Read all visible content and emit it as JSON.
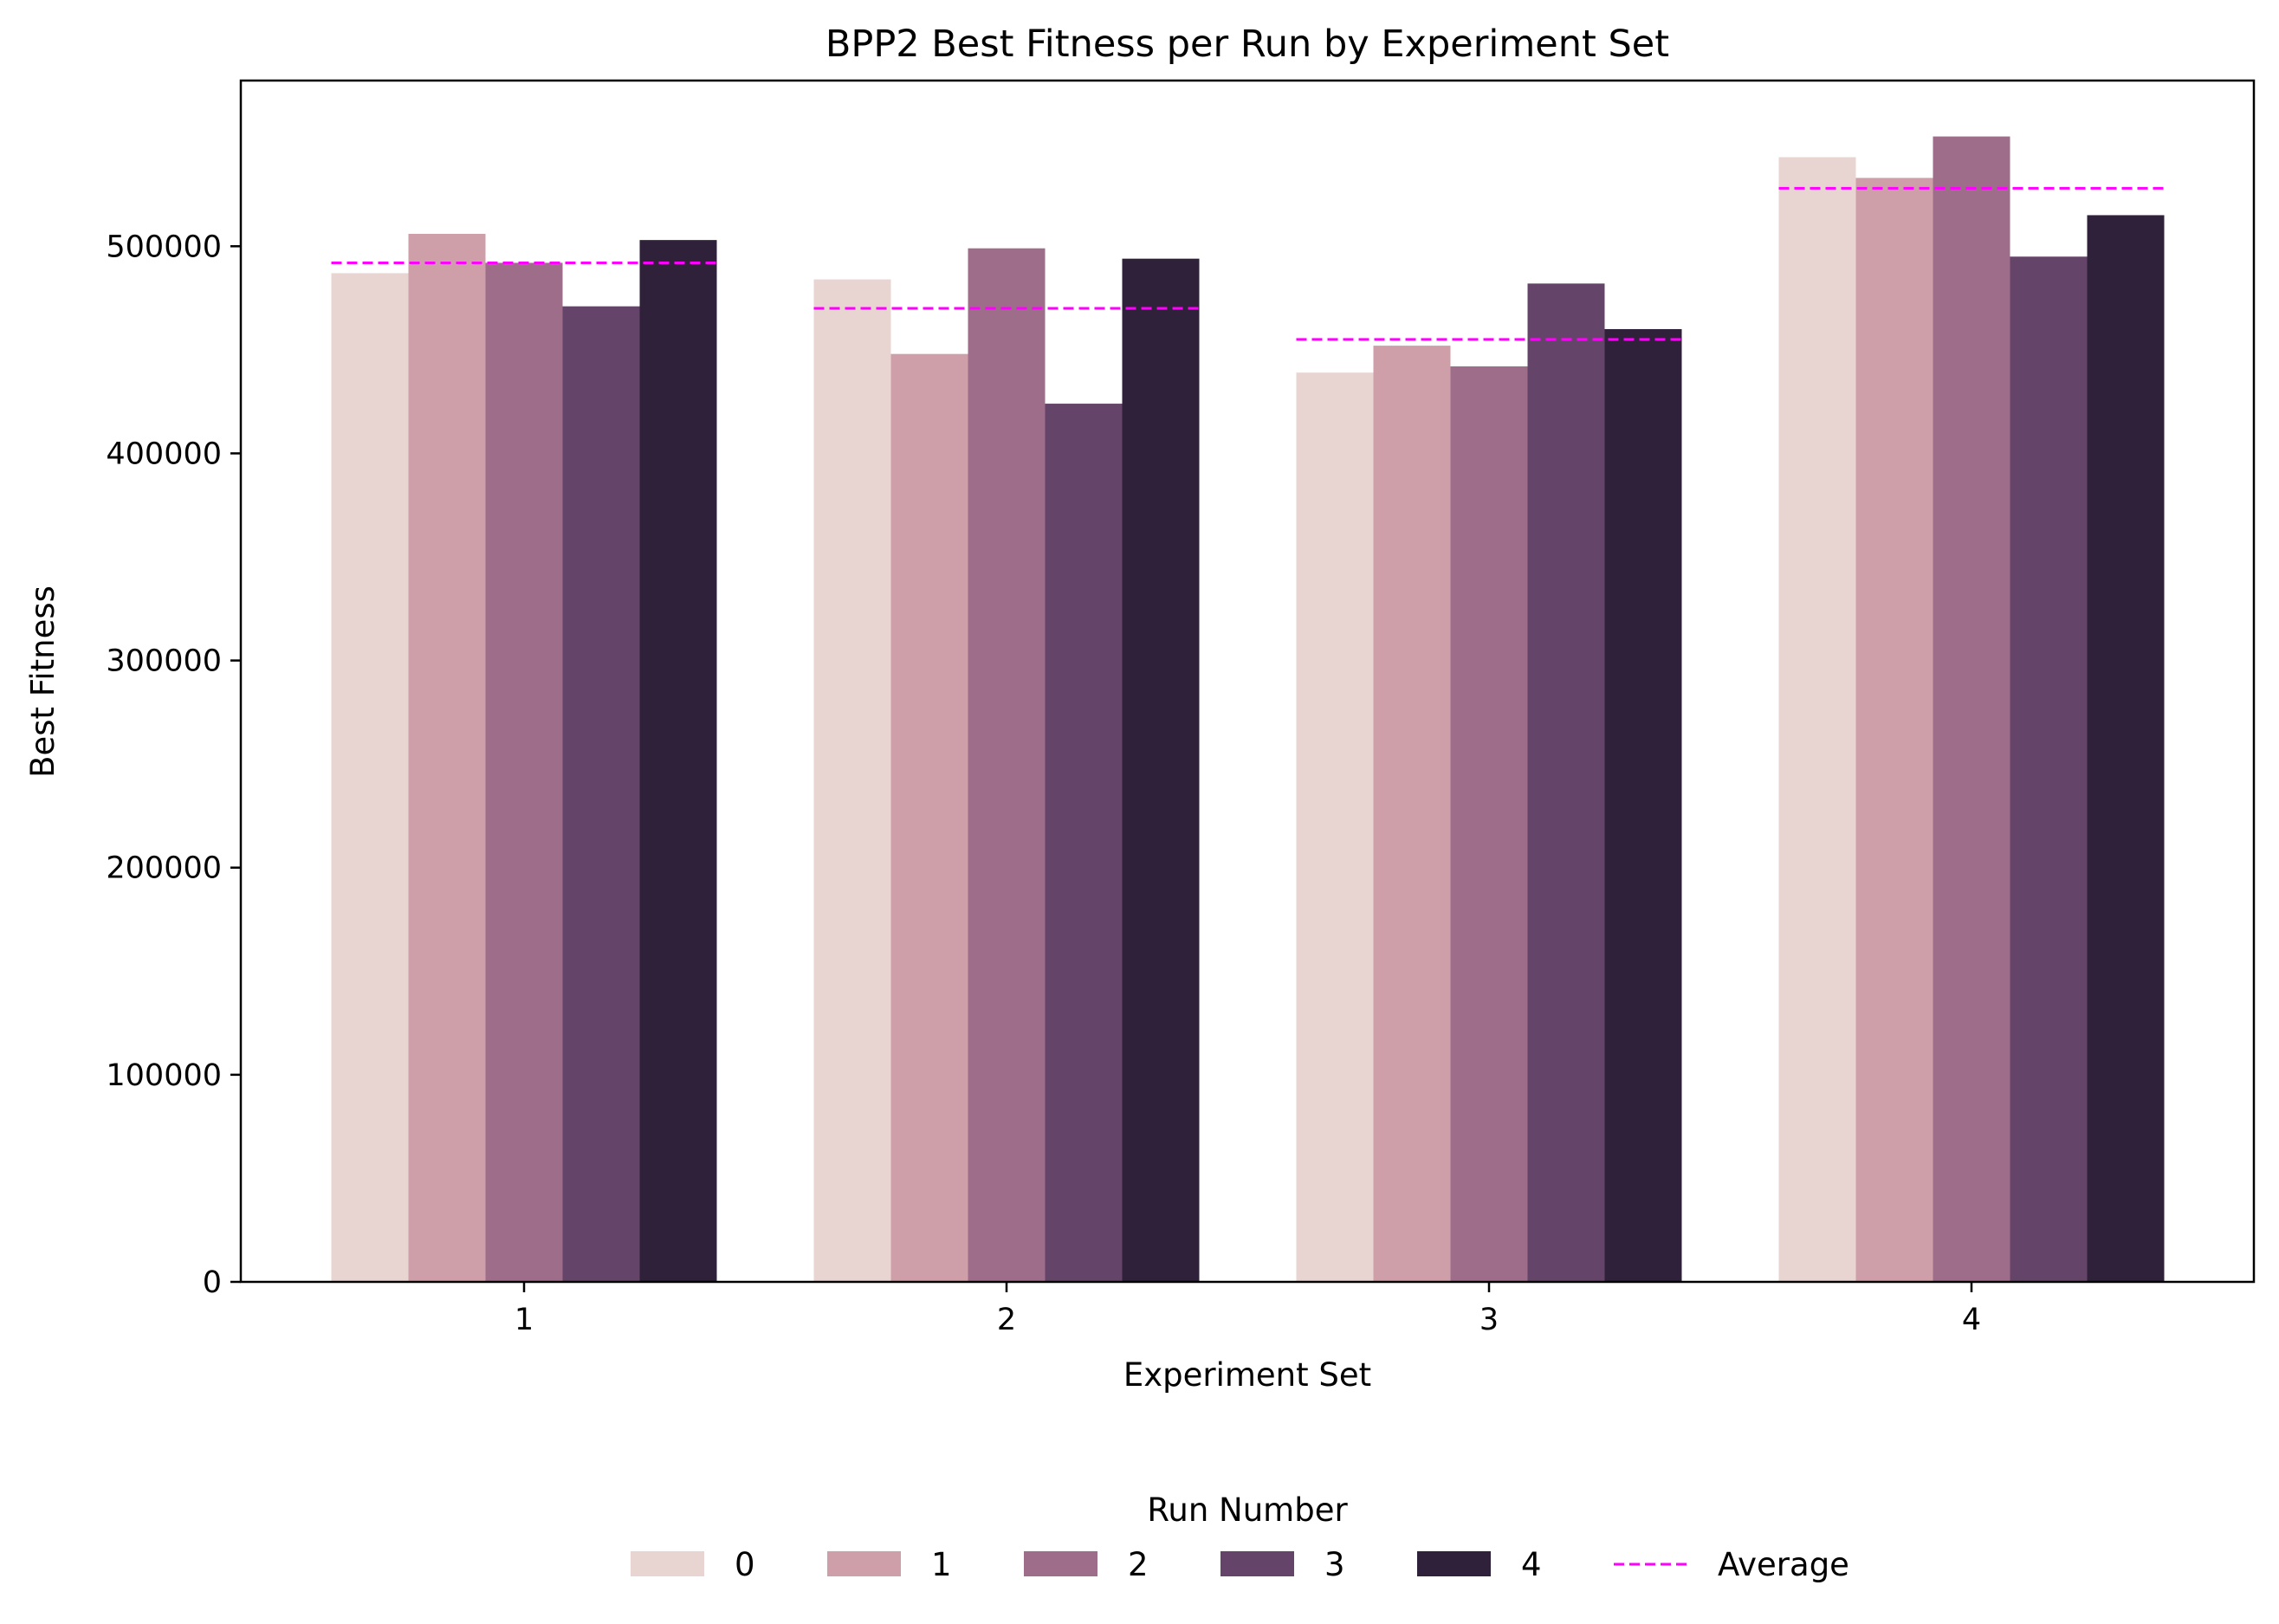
{
  "chart_data": {
    "type": "bar",
    "title": "BPP2 Best Fitness per Run by Experiment Set",
    "xlabel": "Experiment Set",
    "ylabel": "Best Fitness",
    "categories": [
      "1",
      "2",
      "3",
      "4"
    ],
    "ylim": [
      0,
      580000
    ],
    "yticks": [
      0,
      100000,
      200000,
      300000,
      400000,
      500000
    ],
    "ytick_labels": [
      "0",
      "100000",
      "200000",
      "300000",
      "400000",
      "500000"
    ],
    "grid": false,
    "legend": {
      "title": "Run Number",
      "placement": "bottom-center"
    },
    "series": [
      {
        "name": "0",
        "color": "#e8d4d1",
        "values": [
          487000,
          484000,
          439000,
          543000
        ]
      },
      {
        "name": "1",
        "color": "#cf9fa9",
        "values": [
          506000,
          448000,
          452000,
          533000
        ]
      },
      {
        "name": "2",
        "color": "#9e6d8a",
        "values": [
          492000,
          499000,
          442000,
          553000
        ]
      },
      {
        "name": "3",
        "color": "#654469",
        "values": [
          471000,
          424000,
          482000,
          495000
        ]
      },
      {
        "name": "4",
        "color": "#2e2139",
        "values": [
          503000,
          494000,
          460000,
          515000
        ]
      }
    ],
    "average": {
      "name": "Average",
      "color": "#ff00ff",
      "values": [
        492000,
        470000,
        455000,
        528000
      ]
    }
  }
}
